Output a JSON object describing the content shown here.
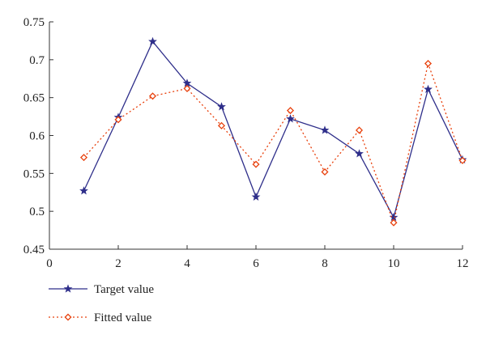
{
  "chart_data": {
    "type": "line",
    "title": "",
    "xlabel": "",
    "ylabel": "",
    "xlim": [
      0,
      12
    ],
    "ylim": [
      0.45,
      0.75
    ],
    "x_ticks": [
      0,
      2,
      4,
      6,
      8,
      10,
      12
    ],
    "y_ticks": [
      0.45,
      0.5,
      0.55,
      0.6,
      0.65,
      0.7,
      0.75
    ],
    "x_tick_labels": [
      "0",
      "2",
      "4",
      "6",
      "8",
      "10",
      "12"
    ],
    "y_tick_labels": [
      "0.45",
      "0.5",
      "0.55",
      "0.6",
      "0.65",
      "0.7",
      "0.75"
    ],
    "grid": false,
    "legend_position": "bottom-left",
    "x": [
      1,
      2,
      3,
      4,
      5,
      6,
      7,
      8,
      9,
      10,
      11,
      12
    ],
    "series": [
      {
        "name": "Target value",
        "color": "#2e2e8a",
        "line_style": "solid",
        "marker": "star",
        "values": [
          0.527,
          0.624,
          0.724,
          0.669,
          0.638,
          0.519,
          0.622,
          0.607,
          0.576,
          0.492,
          0.661,
          0.568
        ]
      },
      {
        "name": "Fitted value",
        "color": "#e8400c",
        "line_style": "dotted",
        "marker": "diamond",
        "values": [
          0.571,
          0.621,
          0.652,
          0.662,
          0.613,
          0.562,
          0.633,
          0.552,
          0.607,
          0.485,
          0.695,
          0.567
        ]
      }
    ]
  }
}
